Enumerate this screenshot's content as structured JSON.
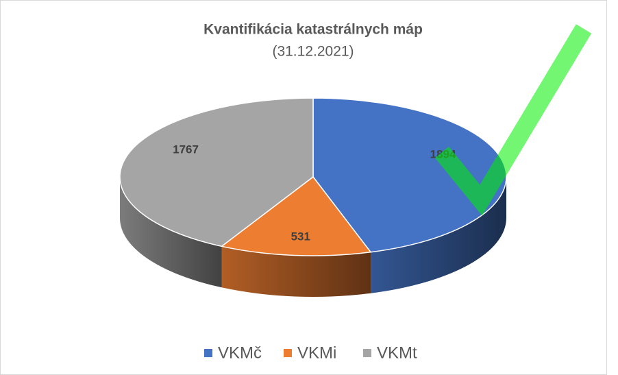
{
  "chart_data": {
    "type": "pie",
    "title": "Kvantifikácia katastrálnych máp",
    "subtitle": "(31.12.2021)",
    "categories": [
      "VKMč",
      "VKMi",
      "VKMt"
    ],
    "values": [
      1894,
      531,
      1767
    ],
    "colors": [
      "#4472c4",
      "#ed7d31",
      "#a5a5a5"
    ],
    "legend": "bottom"
  }
}
